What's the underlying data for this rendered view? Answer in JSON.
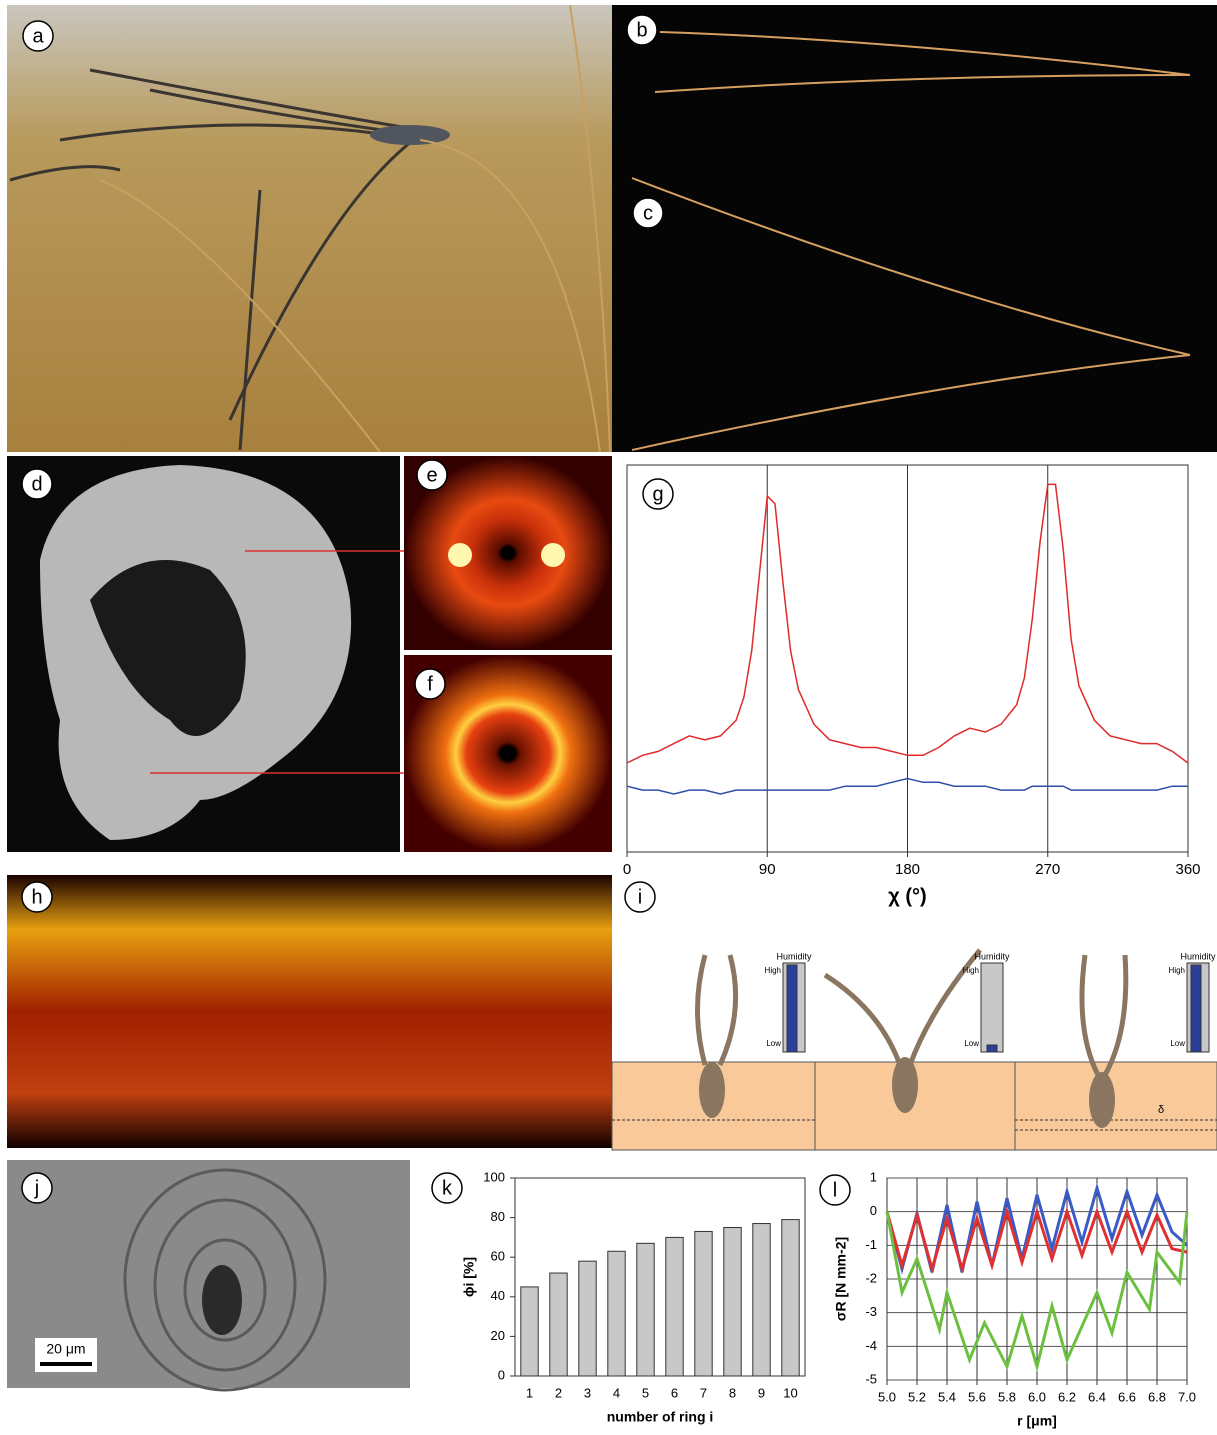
{
  "panel_labels": [
    "a",
    "b",
    "c",
    "d",
    "e",
    "f",
    "g",
    "h",
    "i",
    "j",
    "k",
    "l"
  ],
  "scale_bar": "20 μm",
  "diagram_i": {
    "gauges": [
      {
        "title": "Humidity",
        "high": "High",
        "low": "Low"
      },
      {
        "title": "Humidity",
        "high": "High",
        "low": "Low"
      },
      {
        "title": "Humidity",
        "high": "High",
        "low": "Low"
      }
    ],
    "delta": "δ"
  },
  "chart_data": [
    {
      "type": "line",
      "xlabel": "χ (°)",
      "xlim": [
        0,
        360
      ],
      "xticks": [
        0,
        90,
        180,
        270,
        360
      ],
      "ylim": [
        0,
        100
      ],
      "grid": "x",
      "x": [
        0,
        10,
        20,
        30,
        40,
        50,
        60,
        70,
        75,
        80,
        85,
        90,
        95,
        100,
        105,
        110,
        120,
        130,
        140,
        150,
        160,
        170,
        180,
        190,
        200,
        210,
        220,
        230,
        240,
        250,
        255,
        260,
        265,
        270,
        275,
        280,
        285,
        290,
        300,
        310,
        320,
        330,
        340,
        350,
        360
      ],
      "series": [
        {
          "color": "#e02a2a",
          "values": [
            23,
            25,
            26,
            28,
            30,
            29,
            30,
            34,
            40,
            52,
            72,
            92,
            90,
            70,
            52,
            42,
            33,
            29,
            28,
            27,
            27,
            26,
            25,
            25,
            27,
            30,
            32,
            31,
            33,
            38,
            45,
            60,
            80,
            95,
            95,
            78,
            55,
            43,
            34,
            30,
            29,
            28,
            28,
            26,
            23
          ]
        },
        {
          "color": "#2f4fa8",
          "values": [
            17,
            16,
            16,
            15,
            16,
            16,
            15,
            16,
            16,
            16,
            16,
            16,
            16,
            16,
            16,
            16,
            16,
            16,
            17,
            17,
            17,
            18,
            19,
            18,
            18,
            17,
            17,
            17,
            16,
            16,
            16,
            17,
            17,
            17,
            17,
            17,
            16,
            16,
            16,
            16,
            16,
            16,
            16,
            17,
            17
          ]
        }
      ]
    },
    {
      "type": "bar",
      "xlabel": "number of ring i",
      "ylabel": "ϕi [%]",
      "color": "#c8c8c8",
      "categories": [
        "1",
        "2",
        "3",
        "4",
        "5",
        "6",
        "7",
        "8",
        "9",
        "10"
      ],
      "values": [
        45,
        52,
        58,
        63,
        67,
        70,
        73,
        75,
        77,
        79
      ],
      "ylim": [
        0,
        100
      ],
      "yticks": [
        0,
        20,
        40,
        60,
        80,
        100
      ]
    },
    {
      "type": "line",
      "xlabel": "r [μm]",
      "ylabel": "σR [N mm-2]",
      "grid": true,
      "xlim": [
        5,
        7
      ],
      "xticks": [
        {
          "value": 5,
          "label": "5.0"
        },
        5.2,
        5.4,
        5.6,
        5.8,
        {
          "value": 6,
          "label": "6.0"
        },
        6.2,
        6.4,
        6.6,
        6.8,
        {
          "value": 7,
          "label": "7.0"
        }
      ],
      "ylim": [
        -5,
        1
      ],
      "yticks": [
        -5,
        -4,
        -3,
        -2,
        -1,
        0,
        1
      ],
      "series": [
        {
          "color": "#3a5bc7",
          "x": [
            5.0,
            5.1,
            5.2,
            5.3,
            5.4,
            5.5,
            5.6,
            5.7,
            5.8,
            5.9,
            6.0,
            6.1,
            6.2,
            6.3,
            6.4,
            6.5,
            6.6,
            6.7,
            6.8,
            6.9,
            7.0
          ],
          "values": [
            0,
            -1.7,
            -0.05,
            -1.8,
            0.2,
            -1.8,
            0.3,
            -1.6,
            0.4,
            -1.4,
            0.5,
            -1.1,
            0.6,
            -0.9,
            0.7,
            -0.8,
            0.6,
            -0.7,
            0.5,
            -0.6,
            -1.0
          ]
        },
        {
          "color": "#e03030",
          "x": [
            5.0,
            5.1,
            5.2,
            5.3,
            5.4,
            5.5,
            5.6,
            5.7,
            5.8,
            5.9,
            6.0,
            6.1,
            6.2,
            6.3,
            6.4,
            6.5,
            6.6,
            6.7,
            6.8,
            6.9,
            7.0
          ],
          "values": [
            0,
            -1.6,
            -0.1,
            -1.7,
            -0.2,
            -1.7,
            -0.2,
            -1.6,
            0,
            -1.5,
            0,
            -1.4,
            0,
            -1.3,
            0,
            -1.2,
            0,
            -1.2,
            -0.1,
            -1.1,
            -1.2
          ]
        },
        {
          "color": "#6cc040",
          "x": [
            5.0,
            5.1,
            5.2,
            5.35,
            5.4,
            5.55,
            5.65,
            5.8,
            5.9,
            6.0,
            6.1,
            6.2,
            6.4,
            6.5,
            6.6,
            6.75,
            6.8,
            6.95,
            7.0
          ],
          "values": [
            0,
            -2.4,
            -1.4,
            -3.5,
            -2.4,
            -4.4,
            -3.3,
            -4.6,
            -3.1,
            -4.6,
            -2.8,
            -4.4,
            -2.4,
            -3.6,
            -1.8,
            -2.9,
            -1.2,
            -2.1,
            0
          ]
        }
      ]
    }
  ]
}
